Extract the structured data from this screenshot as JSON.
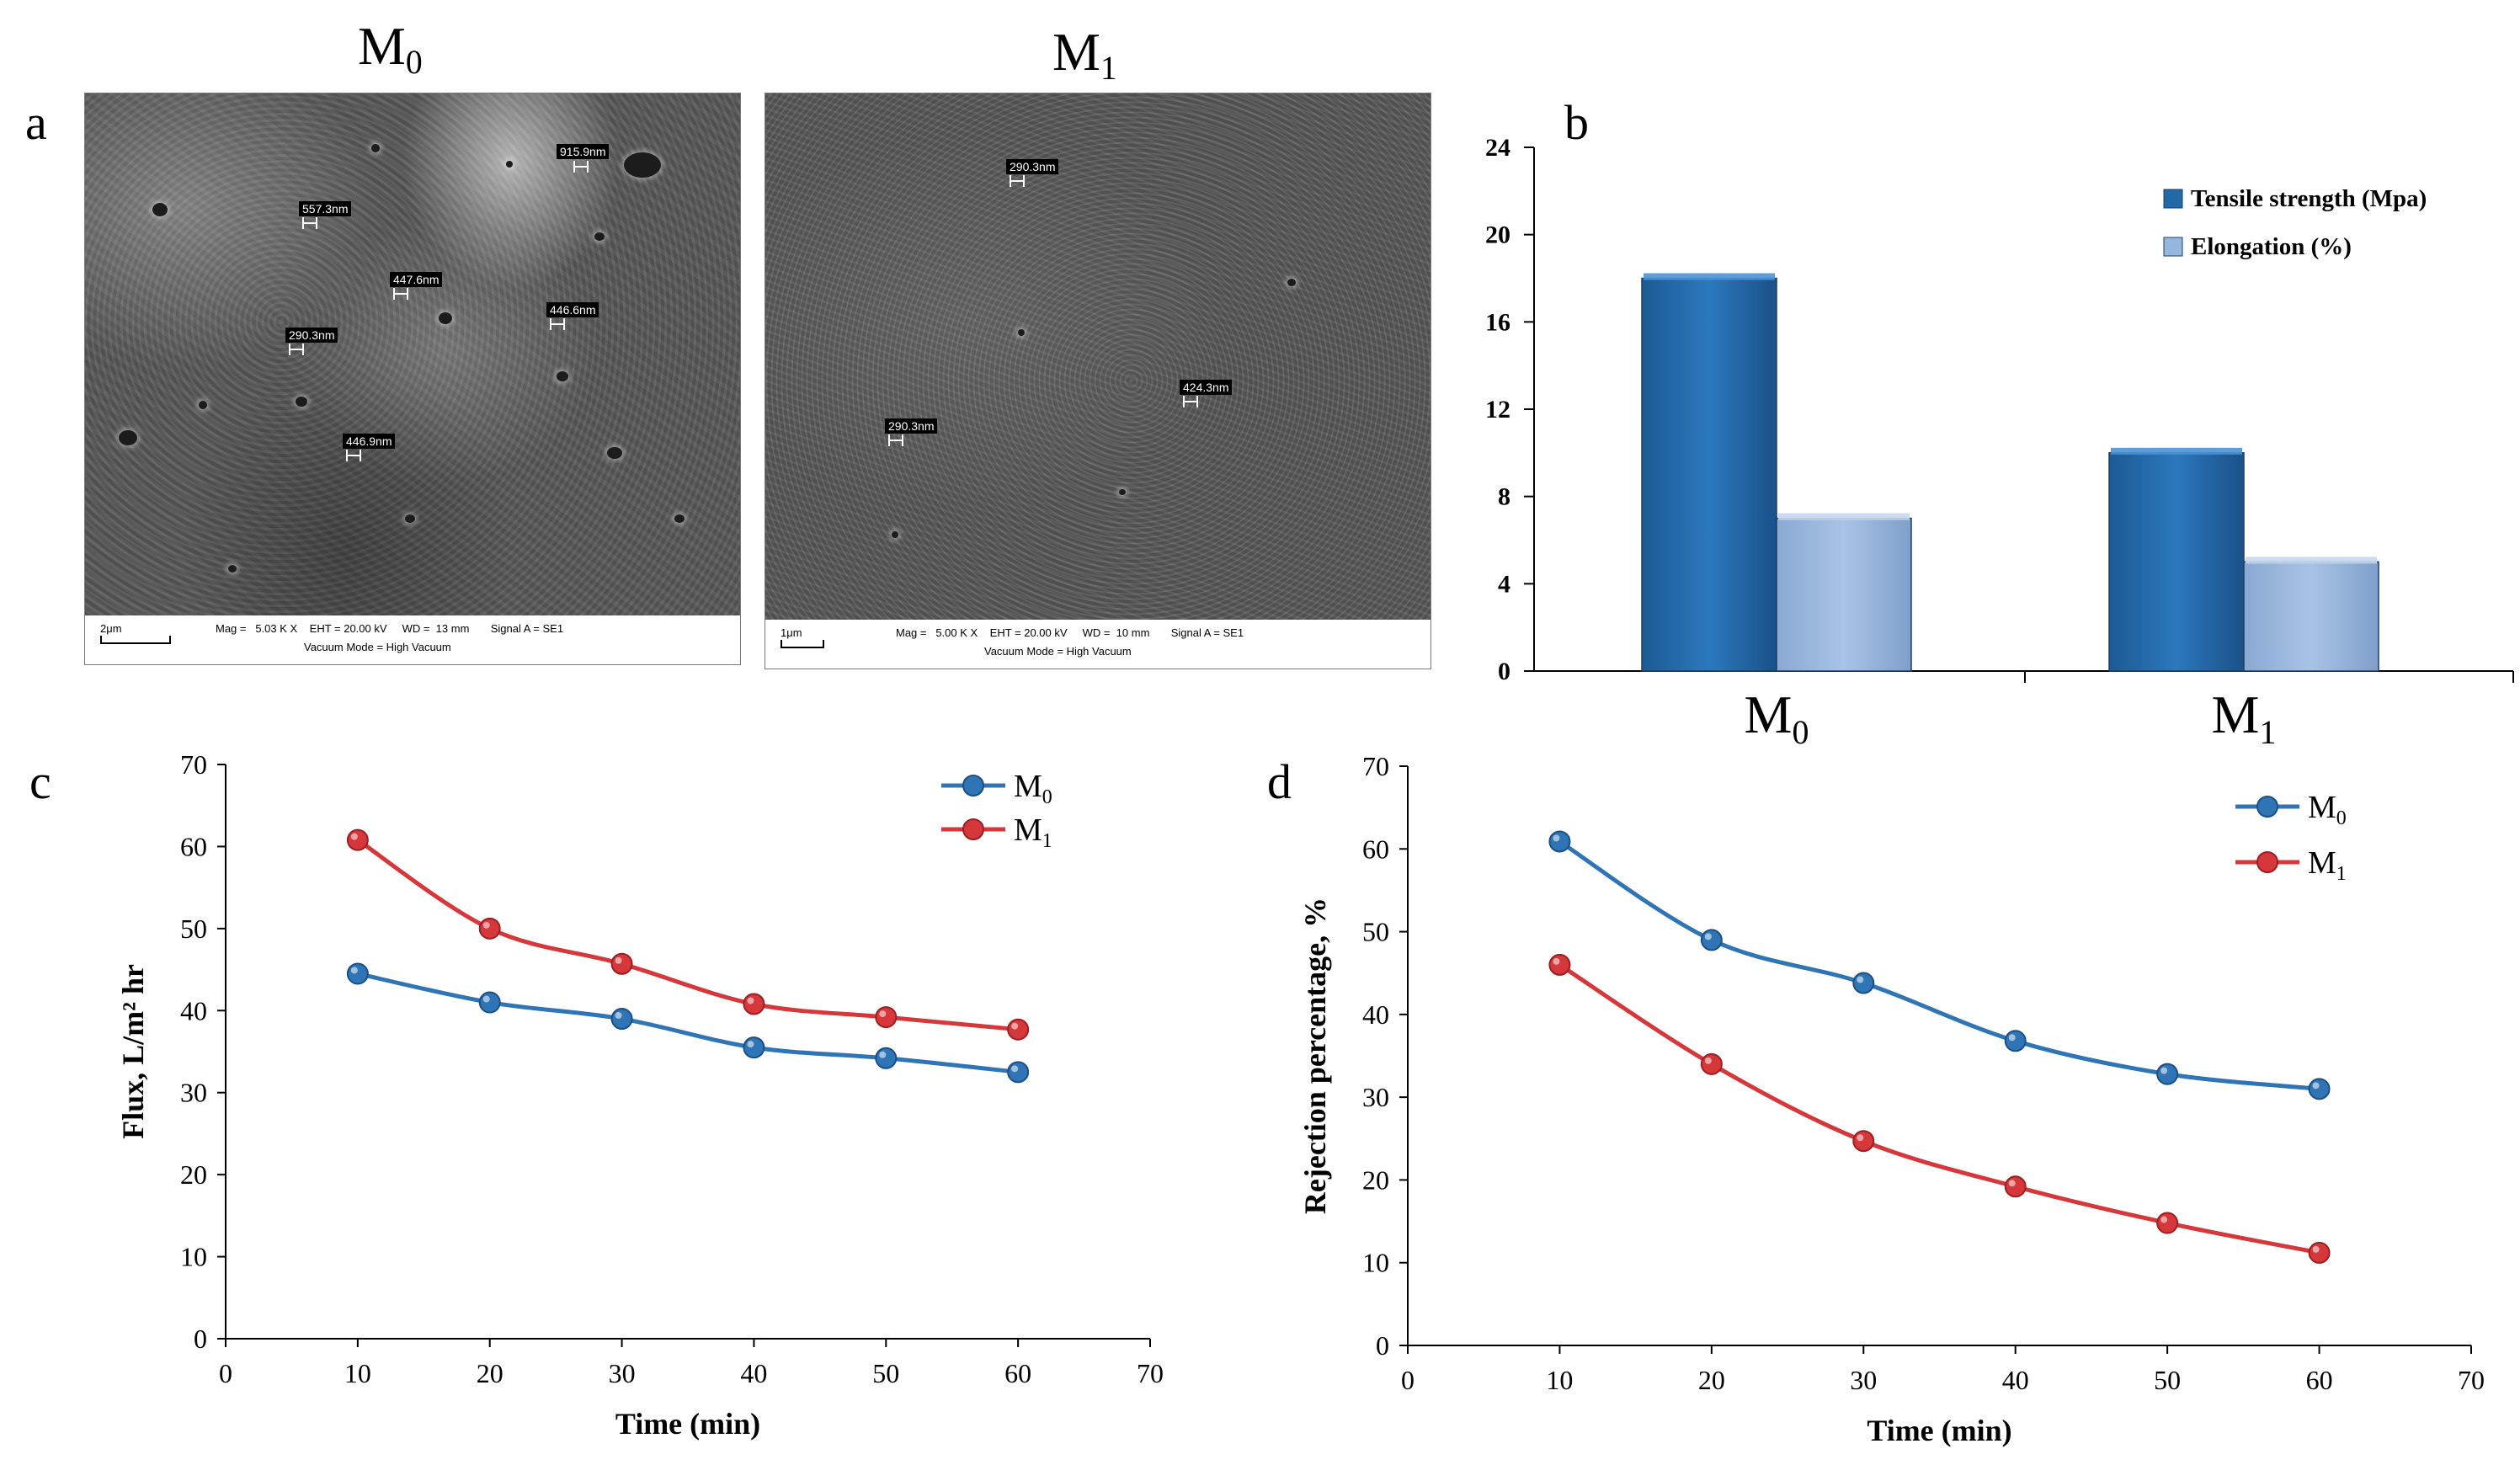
{
  "panels": {
    "a": "a",
    "b": "b",
    "c": "c",
    "d": "d"
  },
  "sem": [
    {
      "title_main": "M",
      "title_sub": "0",
      "info_line1": "Mag =   5.03 K X    EHT = 20.00 kV     WD =  13 mm       Signal A = SE1",
      "info_line2": "Vacuum Mode = High Vacuum",
      "scale": "2μm",
      "measurements": [
        "915.9nm",
        "557.3nm",
        "447.6nm",
        "446.6nm",
        "290.3nm",
        "446.9nm"
      ]
    },
    {
      "title_main": "M",
      "title_sub": "1",
      "info_line1": "Mag =   5.00 K X    EHT = 20.00 kV     WD =  10 mm       Signal A = SE1",
      "info_line2": "Vacuum Mode = High Vacuum",
      "scale": "1μm",
      "measurements": [
        "290.3nm",
        "424.3nm",
        "290.3nm"
      ]
    }
  ],
  "colors": {
    "dark_blue": "#2369a8",
    "light_blue": "#97b6dd",
    "series_blue": "#2f75b6",
    "series_red": "#d6373a"
  },
  "chart_data": [
    {
      "type": "bar",
      "panel": "b",
      "categories": [
        {
          "main": "M",
          "sub": "0"
        },
        {
          "main": "M",
          "sub": "1"
        }
      ],
      "series": [
        {
          "name": "Tensile strength  (Mpa)",
          "values": [
            18,
            10
          ]
        },
        {
          "name": "Elongation (%)",
          "values": [
            7,
            5
          ]
        }
      ],
      "ylim": [
        0,
        24
      ],
      "yticks": [
        0,
        4,
        8,
        12,
        16,
        20,
        24
      ],
      "grid": false,
      "legend": "top-right"
    },
    {
      "type": "line",
      "panel": "c",
      "x": [
        10,
        20,
        30,
        40,
        50,
        60
      ],
      "series": [
        {
          "name_main": "M",
          "name_sub": "0",
          "values": [
            44.5,
            41,
            39,
            35.5,
            34.2,
            32.5
          ]
        },
        {
          "name_main": "M",
          "name_sub": "1",
          "values": [
            60.8,
            50,
            45.7,
            40.8,
            39.2,
            37.7
          ]
        }
      ],
      "xlabel": "Time (min)",
      "ylabel": "Flux, L/m² hr",
      "xlim": [
        0,
        70
      ],
      "ylim": [
        0,
        70
      ],
      "xticks": [
        0,
        10,
        20,
        30,
        40,
        50,
        60,
        70
      ],
      "yticks": [
        0,
        10,
        20,
        30,
        40,
        50,
        60,
        70
      ],
      "grid": false,
      "legend": "top-right"
    },
    {
      "type": "line",
      "panel": "d",
      "x": [
        10,
        20,
        30,
        40,
        50,
        60
      ],
      "series": [
        {
          "name_main": "M",
          "name_sub": "0",
          "values": [
            60.9,
            49,
            43.8,
            36.8,
            32.8,
            31
          ]
        },
        {
          "name_main": "M",
          "name_sub": "1",
          "values": [
            46,
            34,
            24.7,
            19.2,
            14.8,
            11.2
          ]
        }
      ],
      "xlabel": "Time (min)",
      "ylabel": "Rejection percentage,  %",
      "xlim": [
        0,
        70
      ],
      "ylim": [
        0,
        70
      ],
      "xticks": [
        0,
        10,
        20,
        30,
        40,
        50,
        60,
        70
      ],
      "yticks": [
        0,
        10,
        20,
        30,
        40,
        50,
        60,
        70
      ],
      "grid": false,
      "legend": "top-right"
    }
  ]
}
